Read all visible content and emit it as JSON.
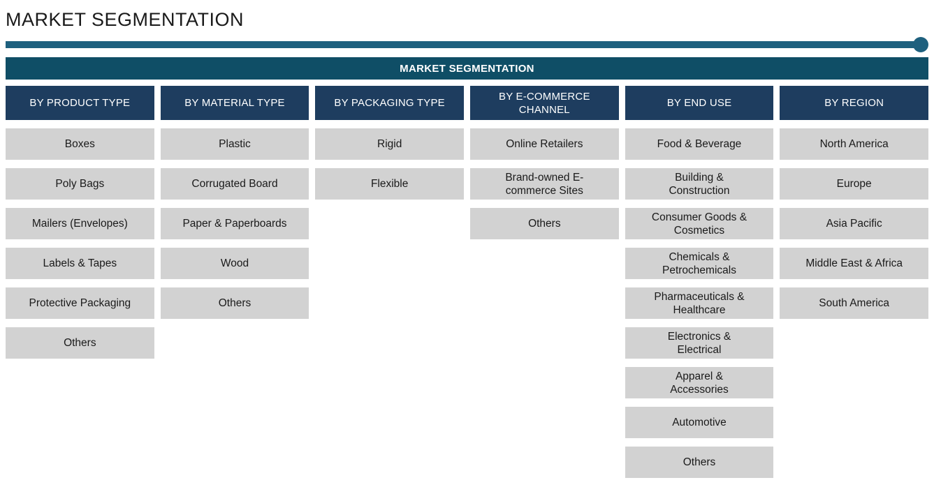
{
  "page": {
    "title": "MARKET SEGMENTATION"
  },
  "banner": {
    "label": "MARKET SEGMENTATION"
  },
  "colors": {
    "page_bg": "#FFFFFF",
    "title_text": "#1A1A1A",
    "divider": "#1E607E",
    "banner_bg": "#0F4E66",
    "header_bg": "#1E3D5F",
    "header_text": "#FFFFFF",
    "cell_bg": "#D2D2D2",
    "cell_text": "#1A1A1A"
  },
  "segmentation": {
    "columns": [
      {
        "header": "BY PRODUCT TYPE",
        "items": [
          "Boxes",
          "Poly Bags",
          "Mailers (Envelopes)",
          "Labels & Tapes",
          "Protective Packaging",
          "Others"
        ]
      },
      {
        "header": "BY MATERIAL TYPE",
        "items": [
          "Plastic",
          "Corrugated Board",
          "Paper & Paperboards",
          "Wood",
          "Others"
        ]
      },
      {
        "header": "BY PACKAGING TYPE",
        "items": [
          "Rigid",
          "Flexible"
        ]
      },
      {
        "header": "BY E-COMMERCE\nCHANNEL",
        "items": [
          "Online Retailers",
          "Brand-owned E-\ncommerce Sites",
          "Others"
        ]
      },
      {
        "header": "BY END USE",
        "items": [
          "Food & Beverage",
          "Building &\nConstruction",
          "Consumer Goods &\nCosmetics",
          "Chemicals &\nPetrochemicals",
          "Pharmaceuticals &\nHealthcare",
          "Electronics &\nElectrical",
          "Apparel &\nAccessories",
          "Automotive",
          "Others"
        ]
      },
      {
        "header": "BY REGION",
        "items": [
          "North America",
          "Europe",
          "Asia Pacific",
          "Middle East & Africa",
          "South America"
        ]
      }
    ]
  }
}
